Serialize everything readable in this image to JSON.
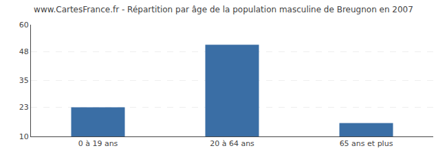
{
  "chart_data": {
    "type": "bar",
    "title": "www.CartesFrance.fr - Répartition par âge de la population masculine de Breugnon en 2007",
    "categories": [
      "0 à 19 ans",
      "20 à 64 ans",
      "65 ans et plus"
    ],
    "values": [
      23,
      51,
      16
    ],
    "color": "#3a6ea5",
    "ylim": [
      10,
      60
    ],
    "yticks": [
      10,
      23,
      35,
      48,
      60
    ],
    "grid": true
  }
}
